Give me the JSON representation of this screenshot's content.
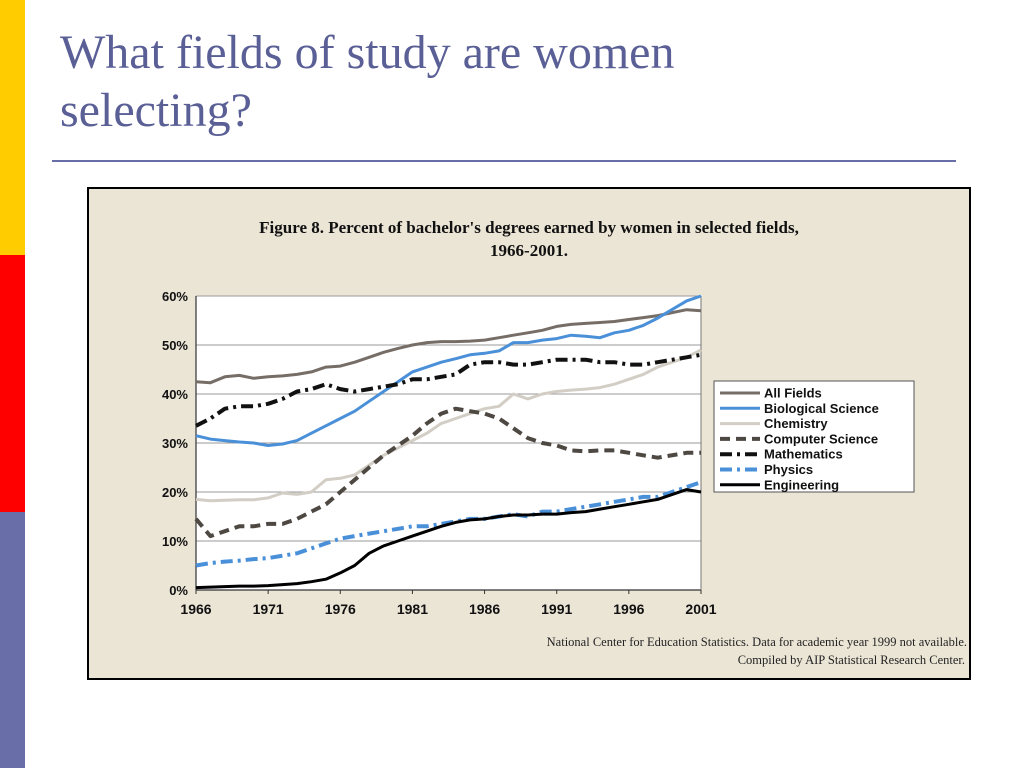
{
  "slide": {
    "title_line1": "What fields of study are women",
    "title_line2": "selecting?",
    "accent_colors": [
      "#ffcc00",
      "#ff0000",
      "#6a6ea8"
    ],
    "title_color": "#5a5f96"
  },
  "chart_data": {
    "type": "line",
    "title_line1": "Figure 8.  Percent of bachelor's degrees earned by women in selected fields,",
    "title_line2": "1966-2001.",
    "xlabel": "",
    "ylabel": "",
    "x_ticks": [
      "1966",
      "1971",
      "1976",
      "1981",
      "1986",
      "1991",
      "1996",
      "2001"
    ],
    "y_ticks": [
      "0%",
      "10%",
      "20%",
      "30%",
      "40%",
      "50%",
      "60%"
    ],
    "xlim": [
      1966,
      2001
    ],
    "ylim": [
      0,
      60
    ],
    "grid": "horizontal",
    "legend_position": "right",
    "source_line1": "National Center for Education Statistics. Data for academic year 1999 not available.",
    "source_line2": "Compiled by AIP Statistical Research Center.",
    "series": [
      {
        "name": "All Fields",
        "color": "#766d67",
        "style": "solid",
        "points": [
          [
            1966,
            42.5
          ],
          [
            1967,
            42.3
          ],
          [
            1968,
            43.5
          ],
          [
            1969,
            43.8
          ],
          [
            1970,
            43.2
          ],
          [
            1971,
            43.5
          ],
          [
            1972,
            43.7
          ],
          [
            1973,
            44.0
          ],
          [
            1974,
            44.5
          ],
          [
            1975,
            45.5
          ],
          [
            1976,
            45.7
          ],
          [
            1977,
            46.5
          ],
          [
            1978,
            47.5
          ],
          [
            1979,
            48.5
          ],
          [
            1980,
            49.3
          ],
          [
            1981,
            50.0
          ],
          [
            1982,
            50.5
          ],
          [
            1983,
            50.7
          ],
          [
            1984,
            50.7
          ],
          [
            1985,
            50.8
          ],
          [
            1986,
            51.0
          ],
          [
            1987,
            51.5
          ],
          [
            1988,
            52.0
          ],
          [
            1989,
            52.5
          ],
          [
            1990,
            53.0
          ],
          [
            1991,
            53.8
          ],
          [
            1992,
            54.2
          ],
          [
            1993,
            54.4
          ],
          [
            1994,
            54.6
          ],
          [
            1995,
            54.8
          ],
          [
            1996,
            55.2
          ],
          [
            1997,
            55.6
          ],
          [
            1998,
            56.0
          ],
          [
            2000,
            57.2
          ],
          [
            2001,
            57.0
          ]
        ]
      },
      {
        "name": "Biological Science",
        "color": "#4a90d9",
        "style": "solid",
        "points": [
          [
            1966,
            31.5
          ],
          [
            1967,
            30.8
          ],
          [
            1968,
            30.5
          ],
          [
            1969,
            30.2
          ],
          [
            1970,
            30.0
          ],
          [
            1971,
            29.5
          ],
          [
            1972,
            29.8
          ],
          [
            1973,
            30.5
          ],
          [
            1974,
            32.0
          ],
          [
            1975,
            33.5
          ],
          [
            1976,
            35.0
          ],
          [
            1977,
            36.5
          ],
          [
            1978,
            38.5
          ],
          [
            1979,
            40.5
          ],
          [
            1980,
            42.5
          ],
          [
            1981,
            44.5
          ],
          [
            1982,
            45.5
          ],
          [
            1983,
            46.5
          ],
          [
            1984,
            47.2
          ],
          [
            1985,
            48.0
          ],
          [
            1986,
            48.3
          ],
          [
            1987,
            48.8
          ],
          [
            1988,
            50.5
          ],
          [
            1989,
            50.5
          ],
          [
            1990,
            51.0
          ],
          [
            1991,
            51.3
          ],
          [
            1992,
            52.0
          ],
          [
            1993,
            51.8
          ],
          [
            1994,
            51.5
          ],
          [
            1995,
            52.5
          ],
          [
            1996,
            53.0
          ],
          [
            1997,
            54.0
          ],
          [
            1998,
            55.5
          ],
          [
            2000,
            59.0
          ],
          [
            2001,
            60.0
          ]
        ]
      },
      {
        "name": "Chemistry",
        "color": "#d3cec5",
        "style": "solid",
        "points": [
          [
            1966,
            18.5
          ],
          [
            1967,
            18.2
          ],
          [
            1968,
            18.3
          ],
          [
            1969,
            18.4
          ],
          [
            1970,
            18.4
          ],
          [
            1971,
            18.8
          ],
          [
            1972,
            19.8
          ],
          [
            1973,
            19.5
          ],
          [
            1974,
            20.0
          ],
          [
            1975,
            22.5
          ],
          [
            1976,
            22.8
          ],
          [
            1977,
            23.5
          ],
          [
            1978,
            25.5
          ],
          [
            1979,
            27.5
          ],
          [
            1980,
            29.0
          ],
          [
            1981,
            30.5
          ],
          [
            1982,
            32.0
          ],
          [
            1983,
            34.0
          ],
          [
            1984,
            35.0
          ],
          [
            1985,
            36.0
          ],
          [
            1986,
            37.0
          ],
          [
            1987,
            37.5
          ],
          [
            1988,
            40.0
          ],
          [
            1989,
            39.0
          ],
          [
            1990,
            40.0
          ],
          [
            1991,
            40.5
          ],
          [
            1992,
            40.8
          ],
          [
            1993,
            41.0
          ],
          [
            1994,
            41.3
          ],
          [
            1995,
            42.0
          ],
          [
            1996,
            43.0
          ],
          [
            1997,
            44.0
          ],
          [
            1998,
            45.5
          ],
          [
            2000,
            47.5
          ],
          [
            2001,
            49.0
          ]
        ]
      },
      {
        "name": "Computer Science",
        "color": "#4e4843",
        "style": "dashed",
        "points": [
          [
            1966,
            14.5
          ],
          [
            1967,
            11.0
          ],
          [
            1968,
            12.0
          ],
          [
            1969,
            13.0
          ],
          [
            1970,
            13.0
          ],
          [
            1971,
            13.5
          ],
          [
            1972,
            13.5
          ],
          [
            1973,
            14.5
          ],
          [
            1974,
            16.0
          ],
          [
            1975,
            17.5
          ],
          [
            1976,
            20.0
          ],
          [
            1977,
            22.5
          ],
          [
            1978,
            25.0
          ],
          [
            1979,
            27.5
          ],
          [
            1980,
            29.5
          ],
          [
            1981,
            31.5
          ],
          [
            1982,
            34.0
          ],
          [
            1983,
            36.0
          ],
          [
            1984,
            37.0
          ],
          [
            1985,
            36.5
          ],
          [
            1986,
            36.0
          ],
          [
            1987,
            35.0
          ],
          [
            1988,
            33.0
          ],
          [
            1989,
            31.0
          ],
          [
            1990,
            30.0
          ],
          [
            1991,
            29.5
          ],
          [
            1992,
            28.5
          ],
          [
            1993,
            28.3
          ],
          [
            1994,
            28.5
          ],
          [
            1995,
            28.5
          ],
          [
            1996,
            28.0
          ],
          [
            1997,
            27.5
          ],
          [
            1998,
            27.0
          ],
          [
            2000,
            28.0
          ],
          [
            2001,
            28.0
          ]
        ]
      },
      {
        "name": "Mathematics",
        "color": "#111111",
        "style": "dashdot",
        "points": [
          [
            1966,
            33.5
          ],
          [
            1967,
            35.0
          ],
          [
            1968,
            37.0
          ],
          [
            1969,
            37.5
          ],
          [
            1970,
            37.5
          ],
          [
            1971,
            38.0
          ],
          [
            1972,
            39.0
          ],
          [
            1973,
            40.5
          ],
          [
            1974,
            41.0
          ],
          [
            1975,
            42.0
          ],
          [
            1976,
            41.0
          ],
          [
            1977,
            40.5
          ],
          [
            1978,
            41.0
          ],
          [
            1979,
            41.5
          ],
          [
            1980,
            42.0
          ],
          [
            1981,
            43.0
          ],
          [
            1982,
            43.0
          ],
          [
            1983,
            43.5
          ],
          [
            1984,
            44.0
          ],
          [
            1985,
            46.0
          ],
          [
            1986,
            46.5
          ],
          [
            1987,
            46.5
          ],
          [
            1988,
            46.0
          ],
          [
            1989,
            46.0
          ],
          [
            1990,
            46.5
          ],
          [
            1991,
            47.0
          ],
          [
            1992,
            47.0
          ],
          [
            1993,
            47.0
          ],
          [
            1994,
            46.5
          ],
          [
            1995,
            46.5
          ],
          [
            1996,
            46.0
          ],
          [
            1997,
            46.0
          ],
          [
            1998,
            46.5
          ],
          [
            2000,
            47.5
          ],
          [
            2001,
            48.0
          ]
        ]
      },
      {
        "name": "Physics",
        "color": "#4a90d9",
        "style": "dashdot",
        "points": [
          [
            1966,
            5.0
          ],
          [
            1967,
            5.5
          ],
          [
            1968,
            5.8
          ],
          [
            1969,
            6.0
          ],
          [
            1970,
            6.3
          ],
          [
            1971,
            6.5
          ],
          [
            1972,
            7.0
          ],
          [
            1973,
            7.5
          ],
          [
            1974,
            8.5
          ],
          [
            1975,
            9.5
          ],
          [
            1976,
            10.5
          ],
          [
            1977,
            11.0
          ],
          [
            1978,
            11.5
          ],
          [
            1979,
            12.0
          ],
          [
            1980,
            12.5
          ],
          [
            1981,
            13.0
          ],
          [
            1982,
            13.0
          ],
          [
            1983,
            13.5
          ],
          [
            1984,
            14.0
          ],
          [
            1985,
            14.5
          ],
          [
            1986,
            14.5
          ],
          [
            1987,
            15.0
          ],
          [
            1988,
            15.5
          ],
          [
            1989,
            15.0
          ],
          [
            1990,
            16.0
          ],
          [
            1991,
            16.0
          ],
          [
            1992,
            16.5
          ],
          [
            1993,
            17.0
          ],
          [
            1994,
            17.5
          ],
          [
            1995,
            18.0
          ],
          [
            1996,
            18.5
          ],
          [
            1997,
            19.0
          ],
          [
            1998,
            19.0
          ],
          [
            2000,
            21.0
          ],
          [
            2001,
            22.0
          ]
        ]
      },
      {
        "name": "Engineering",
        "color": "#000000",
        "style": "solid",
        "points": [
          [
            1966,
            0.5
          ],
          [
            1967,
            0.6
          ],
          [
            1968,
            0.7
          ],
          [
            1969,
            0.8
          ],
          [
            1970,
            0.8
          ],
          [
            1971,
            0.9
          ],
          [
            1972,
            1.1
          ],
          [
            1973,
            1.3
          ],
          [
            1974,
            1.7
          ],
          [
            1975,
            2.2
          ],
          [
            1976,
            3.5
          ],
          [
            1977,
            5.0
          ],
          [
            1978,
            7.5
          ],
          [
            1979,
            9.0
          ],
          [
            1980,
            10.0
          ],
          [
            1981,
            11.0
          ],
          [
            1982,
            12.0
          ],
          [
            1983,
            13.0
          ],
          [
            1984,
            13.8
          ],
          [
            1985,
            14.3
          ],
          [
            1986,
            14.5
          ],
          [
            1987,
            15.0
          ],
          [
            1988,
            15.3
          ],
          [
            1989,
            15.3
          ],
          [
            1990,
            15.5
          ],
          [
            1991,
            15.5
          ],
          [
            1992,
            15.8
          ],
          [
            1993,
            16.0
          ],
          [
            1994,
            16.5
          ],
          [
            1995,
            17.0
          ],
          [
            1996,
            17.5
          ],
          [
            1997,
            18.0
          ],
          [
            1998,
            18.5
          ],
          [
            2000,
            20.5
          ],
          [
            2001,
            20.0
          ]
        ]
      }
    ]
  }
}
